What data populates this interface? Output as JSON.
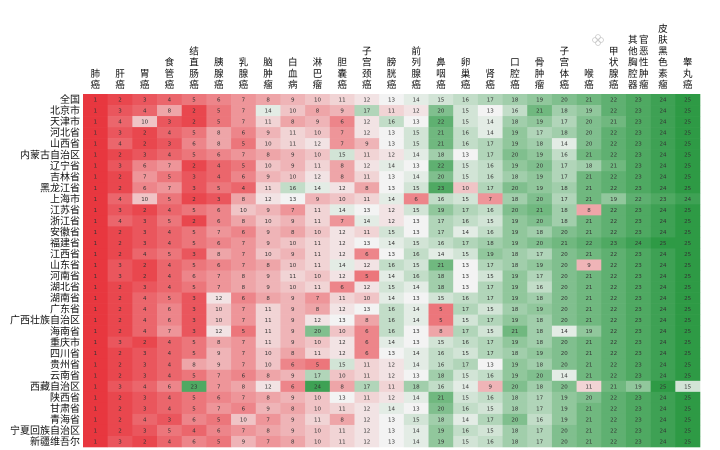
{
  "chart_data": {
    "type": "heatmap",
    "title": "",
    "columns": [
      "肺癌",
      "肝癌",
      "胃癌",
      "食管癌",
      "结直肠癌",
      "胰腺癌",
      "乳腺癌",
      "脑肿瘤",
      "白血病",
      "淋巴瘤",
      "胆囊癌",
      "子宫颈癌",
      "膀胱癌",
      "前列腺癌",
      "鼻咽癌",
      "卵巢癌",
      "肾癌",
      "口腔癌",
      "骨肿瘤",
      "子宫体癌",
      "喉癌",
      "甲状腺癌",
      "其他胸腔器官恶性肿瘤",
      "皮肤黑色素瘤",
      "睾丸癌"
    ],
    "rows": [
      "全国",
      "北京市",
      "天津市",
      "河北省",
      "山西省",
      "内蒙古自治区",
      "辽宁省",
      "吉林省",
      "黑龙江省",
      "上海市",
      "江苏省",
      "浙江省",
      "安徽省",
      "福建省",
      "江西省",
      "山东省",
      "河南省",
      "湖北省",
      "湖南省",
      "广东省",
      "广西壮族自治区",
      "海南省",
      "重庆市",
      "四川省",
      "贵州省",
      "云南省",
      "西藏自治区",
      "陕西省",
      "甘肃省",
      "青海省",
      "宁夏回族自治区",
      "新疆维吾尔"
    ],
    "values": [
      [
        1,
        2,
        3,
        4,
        5,
        6,
        7,
        8,
        9,
        10,
        11,
        12,
        13,
        14,
        15,
        16,
        17,
        18,
        19,
        20,
        21,
        22,
        23,
        24,
        25
      ],
      [
        1,
        3,
        4,
        8,
        2,
        5,
        7,
        14,
        10,
        8,
        9,
        17,
        11,
        12,
        20,
        15,
        13,
        16,
        21,
        18,
        19,
        22,
        23,
        24,
        25
      ],
      [
        1,
        4,
        10,
        3,
        2,
        5,
        7,
        11,
        8,
        9,
        6,
        12,
        16,
        13,
        22,
        15,
        14,
        18,
        19,
        17,
        20,
        21,
        23,
        24,
        25
      ],
      [
        1,
        3,
        2,
        4,
        5,
        8,
        6,
        9,
        11,
        10,
        7,
        12,
        13,
        15,
        21,
        16,
        14,
        19,
        17,
        18,
        20,
        22,
        23,
        24,
        25
      ],
      [
        1,
        4,
        2,
        3,
        6,
        8,
        5,
        10,
        11,
        12,
        7,
        9,
        13,
        15,
        21,
        16,
        17,
        19,
        18,
        14,
        20,
        22,
        23,
        24,
        25
      ],
      [
        1,
        2,
        3,
        4,
        5,
        6,
        7,
        8,
        9,
        10,
        15,
        11,
        12,
        14,
        18,
        13,
        17,
        20,
        19,
        16,
        21,
        22,
        23,
        24,
        25
      ],
      [
        1,
        3,
        6,
        7,
        2,
        4,
        5,
        10,
        9,
        11,
        8,
        12,
        14,
        13,
        22,
        15,
        16,
        19,
        20,
        17,
        18,
        21,
        23,
        24,
        25
      ],
      [
        1,
        2,
        7,
        5,
        3,
        4,
        6,
        9,
        10,
        12,
        8,
        11,
        13,
        14,
        20,
        15,
        16,
        18,
        19,
        17,
        21,
        22,
        23,
        24,
        25
      ],
      [
        1,
        2,
        6,
        7,
        3,
        5,
        4,
        11,
        16,
        14,
        12,
        8,
        13,
        15,
        23,
        10,
        17,
        20,
        19,
        18,
        21,
        22,
        23,
        24,
        25
      ],
      [
        1,
        4,
        10,
        5,
        2,
        3,
        8,
        12,
        13,
        9,
        10,
        11,
        14,
        6,
        16,
        15,
        7,
        18,
        20,
        17,
        21,
        19,
        22,
        23,
        24
      ],
      [
        1,
        3,
        2,
        4,
        5,
        6,
        10,
        9,
        7,
        11,
        14,
        13,
        12,
        15,
        19,
        17,
        16,
        20,
        21,
        18,
        8,
        22,
        23,
        24,
        25
      ],
      [
        1,
        4,
        3,
        5,
        2,
        6,
        8,
        10,
        9,
        11,
        7,
        14,
        12,
        13,
        17,
        16,
        15,
        19,
        20,
        18,
        21,
        22,
        23,
        24,
        25
      ],
      [
        1,
        2,
        3,
        4,
        5,
        7,
        6,
        9,
        8,
        10,
        12,
        11,
        15,
        13,
        17,
        14,
        16,
        19,
        18,
        20,
        21,
        22,
        23,
        24,
        25
      ],
      [
        1,
        2,
        3,
        4,
        5,
        6,
        7,
        9,
        10,
        11,
        12,
        13,
        14,
        15,
        16,
        17,
        18,
        19,
        20,
        21,
        22,
        23,
        24,
        25,
        25
      ],
      [
        1,
        2,
        4,
        5,
        3,
        8,
        7,
        10,
        9,
        11,
        12,
        6,
        13,
        16,
        14,
        15,
        19,
        18,
        17,
        20,
        21,
        22,
        23,
        24,
        25
      ],
      [
        1,
        3,
        2,
        4,
        5,
        6,
        7,
        8,
        10,
        11,
        14,
        12,
        16,
        15,
        21,
        13,
        17,
        18,
        19,
        20,
        9,
        22,
        23,
        24,
        25
      ],
      [
        1,
        3,
        2,
        4,
        6,
        7,
        8,
        9,
        11,
        10,
        12,
        5,
        14,
        16,
        18,
        13,
        15,
        19,
        17,
        20,
        21,
        22,
        23,
        24,
        25
      ],
      [
        1,
        2,
        3,
        4,
        5,
        7,
        8,
        9,
        10,
        11,
        6,
        12,
        15,
        14,
        18,
        13,
        17,
        19,
        16,
        20,
        21,
        22,
        23,
        24,
        25
      ],
      [
        1,
        2,
        4,
        5,
        3,
        12,
        6,
        8,
        9,
        7,
        11,
        10,
        14,
        13,
        15,
        16,
        17,
        19,
        18,
        20,
        21,
        22,
        23,
        24,
        25
      ],
      [
        1,
        2,
        4,
        6,
        3,
        10,
        7,
        11,
        9,
        8,
        12,
        13,
        16,
        14,
        5,
        17,
        15,
        18,
        19,
        20,
        21,
        22,
        23,
        24,
        25
      ],
      [
        1,
        2,
        4,
        6,
        3,
        10,
        7,
        11,
        9,
        12,
        13,
        8,
        16,
        14,
        5,
        15,
        17,
        19,
        18,
        20,
        21,
        22,
        23,
        24,
        25
      ],
      [
        1,
        2,
        4,
        7,
        3,
        12,
        5,
        11,
        9,
        20,
        10,
        6,
        16,
        13,
        8,
        17,
        15,
        21,
        18,
        14,
        19,
        22,
        23,
        24,
        25
      ],
      [
        1,
        3,
        2,
        4,
        5,
        8,
        7,
        11,
        9,
        10,
        12,
        6,
        14,
        13,
        15,
        16,
        17,
        19,
        18,
        20,
        21,
        22,
        23,
        24,
        25
      ],
      [
        1,
        2,
        3,
        4,
        5,
        9,
        7,
        10,
        8,
        11,
        12,
        6,
        13,
        14,
        16,
        15,
        17,
        18,
        19,
        20,
        21,
        22,
        23,
        24,
        25
      ],
      [
        1,
        2,
        3,
        4,
        8,
        9,
        7,
        10,
        6,
        5,
        15,
        11,
        12,
        14,
        16,
        17,
        13,
        19,
        18,
        20,
        21,
        22,
        23,
        24,
        25
      ],
      [
        1,
        2,
        3,
        4,
        5,
        7,
        6,
        8,
        9,
        17,
        10,
        11,
        12,
        13,
        18,
        15,
        16,
        19,
        20,
        14,
        21,
        22,
        23,
        24,
        25
      ],
      [
        1,
        3,
        4,
        6,
        23,
        7,
        8,
        12,
        6,
        24,
        8,
        17,
        11,
        18,
        16,
        14,
        9,
        20,
        18,
        20,
        11,
        21,
        19,
        25,
        15
      ],
      [
        1,
        2,
        3,
        4,
        5,
        6,
        7,
        8,
        9,
        10,
        13,
        11,
        12,
        14,
        21,
        15,
        16,
        18,
        17,
        19,
        20,
        22,
        23,
        24,
        25
      ],
      [
        1,
        2,
        3,
        4,
        5,
        7,
        6,
        9,
        8,
        10,
        11,
        12,
        14,
        13,
        20,
        16,
        15,
        18,
        17,
        19,
        21,
        22,
        23,
        24,
        25
      ],
      [
        1,
        2,
        4,
        3,
        6,
        5,
        10,
        7,
        9,
        11,
        8,
        12,
        13,
        15,
        18,
        14,
        17,
        20,
        16,
        19,
        21,
        22,
        23,
        24,
        25
      ],
      [
        1,
        2,
        3,
        5,
        4,
        6,
        7,
        8,
        9,
        10,
        11,
        12,
        13,
        14,
        19,
        16,
        15,
        18,
        17,
        20,
        21,
        22,
        23,
        24,
        25
      ],
      [
        1,
        3,
        2,
        4,
        6,
        5,
        9,
        7,
        8,
        10,
        11,
        12,
        13,
        14,
        19,
        15,
        16,
        18,
        17,
        20,
        21,
        22,
        23,
        24,
        25
      ]
    ],
    "color_low": "#e8373f",
    "color_mid": "#f3f3f3",
    "color_high": "#2e9a45",
    "value_range": [
      1,
      25
    ]
  },
  "watermark": {
    "icon": "flower-icon",
    "text": ""
  }
}
